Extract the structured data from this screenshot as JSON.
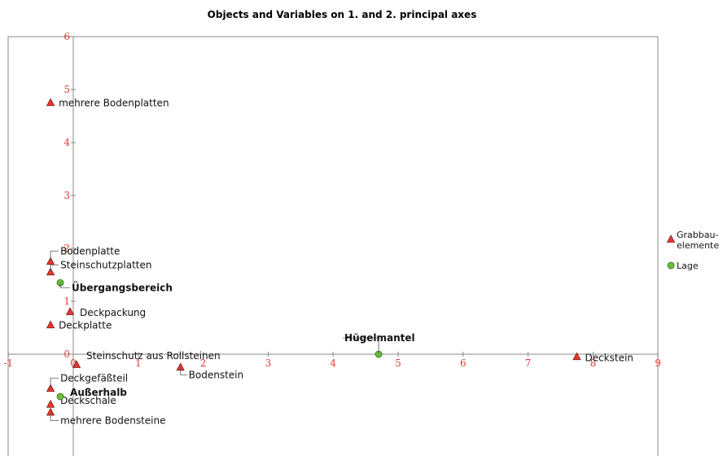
{
  "chart_data": {
    "type": "scatter",
    "title": "Objects and Variables on 1. and 2. principal axes",
    "xlim": [
      -1,
      9
    ],
    "ylim": [
      -1.7,
      6
    ],
    "x_ticks": [
      "-1",
      "0",
      "1",
      "2",
      "3",
      "4",
      "5",
      "6",
      "7",
      "8",
      "9"
    ],
    "y_ticks": [
      "0",
      "1",
      "2",
      "3",
      "4",
      "5",
      "6"
    ],
    "grid": false,
    "legend_position": "right",
    "series": [
      {
        "name": "Grabbau-\nelemente",
        "marker": "triangle",
        "color": "#e8382f",
        "points": [
          {
            "label": "mehrere Bodenplatten",
            "x": -0.35,
            "y": 4.75
          },
          {
            "label": "Bodenplatte",
            "x": -0.35,
            "y": 1.75
          },
          {
            "label": "Steinschutzplatten",
            "x": -0.35,
            "y": 1.55
          },
          {
            "label": "Deckpackung",
            "x": -0.05,
            "y": 0.8
          },
          {
            "label": "Deckplatte",
            "x": -0.35,
            "y": 0.55
          },
          {
            "label": "Steinschutz aus Rollsteinen",
            "x": 0.05,
            "y": -0.2
          },
          {
            "label": "Bodenstein",
            "x": 1.65,
            "y": -0.25
          },
          {
            "label": "Deckstein",
            "x": 7.75,
            "y": -0.05
          },
          {
            "label": "Deckgefäßteil",
            "x": -0.35,
            "y": -0.65
          },
          {
            "label": "Deckschale",
            "x": -0.35,
            "y": -0.95
          },
          {
            "label": "mehrere Bodensteine",
            "x": -0.35,
            "y": -1.1
          }
        ]
      },
      {
        "name": "Lage",
        "marker": "circle",
        "color": "#6abf3c",
        "points": [
          {
            "label": "Übergangsbereich",
            "x": -0.2,
            "y": 1.35
          },
          {
            "label": "Hügelmantel",
            "x": 4.7,
            "y": 0.0
          },
          {
            "label": "Außerhalb",
            "x": -0.2,
            "y": -0.8
          }
        ]
      }
    ]
  }
}
